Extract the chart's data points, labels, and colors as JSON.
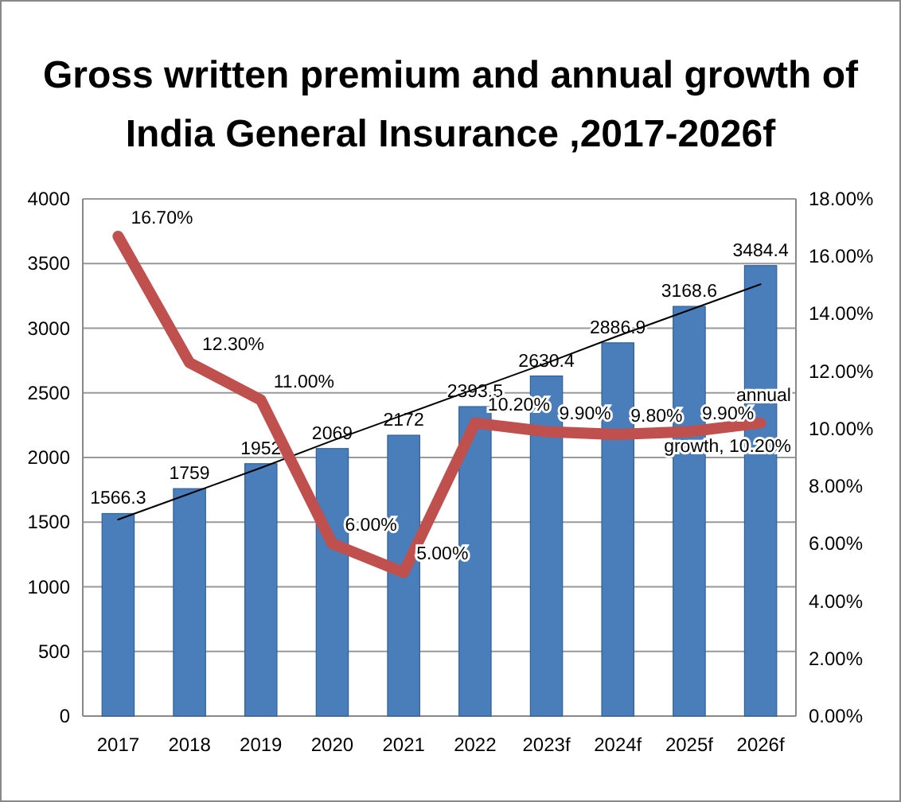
{
  "chart_data": {
    "type": "bar",
    "title": "Gross written premium and annual growth of India General Insurance ,2017-2026f",
    "categories": [
      "2017",
      "2018",
      "2019",
      "2020",
      "2021",
      "2022",
      "2023f",
      "2024f",
      "2025f",
      "2026f"
    ],
    "series": [
      {
        "color": "#4a7ebb",
        "values": [
          1566.3,
          1759,
          1952,
          2069,
          2172,
          2393.5,
          2630.4,
          2886.9,
          3168.6,
          3484.4
        ],
        "value_labels": [
          "1566.3",
          "1759",
          "1952",
          "2069",
          "2172",
          "2393.5",
          "2630.4",
          "2886.9",
          "3168.6",
          "3484.4"
        ]
      },
      {
        "type": "line",
        "color": "#000000",
        "values": [
          1520,
          1720,
          1920,
          2130,
          2330,
          2530,
          2730,
          2940,
          3140,
          3340
        ]
      },
      {
        "type": "line",
        "axis": "y2",
        "color": "#c0504d",
        "values": [
          16.7,
          12.3,
          11.0,
          6.0,
          5.0,
          10.2,
          9.9,
          9.8,
          9.9,
          10.2
        ],
        "value_labels": [
          "16.70%",
          "12.30%",
          "11.00%",
          "6.00%",
          "5.00%",
          "10.20%",
          "9.90%",
          "9.80%",
          "9.90%",
          "annual growth, 10.20%"
        ]
      }
    ],
    "ylim": [
      0,
      4000
    ],
    "yticks": [
      0,
      500,
      1000,
      1500,
      2000,
      2500,
      3000,
      3500,
      4000
    ],
    "y2lim": [
      0,
      18
    ],
    "y2ticks": [
      {
        "value": 0,
        "label": "0.00%"
      },
      {
        "value": 2,
        "label": "2.00%"
      },
      {
        "value": 4,
        "label": "4.00%"
      },
      {
        "value": 6,
        "label": "6.00%"
      },
      {
        "value": 8,
        "label": "8.00%"
      },
      {
        "value": 10,
        "label": "10.00%"
      },
      {
        "value": 12,
        "label": "12.00%"
      },
      {
        "value": 14,
        "label": "14.00%"
      },
      {
        "value": 16,
        "label": "16.00%"
      },
      {
        "value": 18,
        "label": "18.00%"
      }
    ],
    "grid": "y"
  }
}
